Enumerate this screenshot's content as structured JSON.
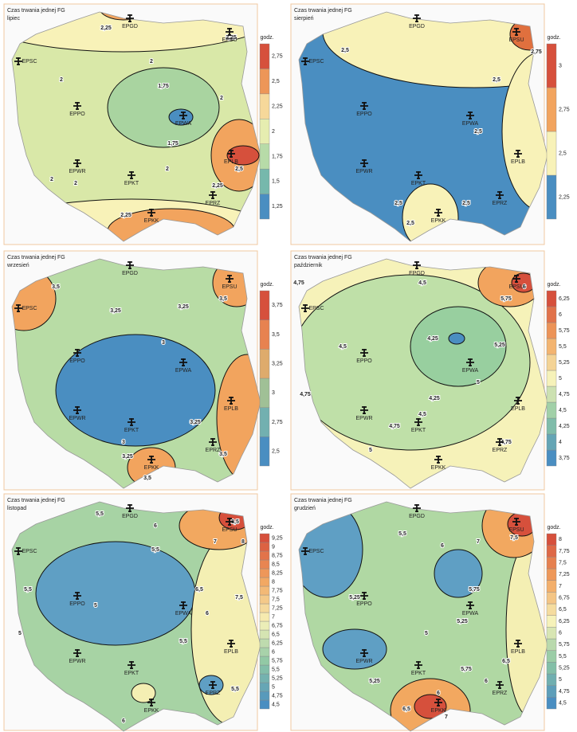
{
  "title": "Czas trwania jednej FG",
  "legend_title": "godz.",
  "airports": [
    "EPGD",
    "EPSU",
    "EPSC",
    "EPPO",
    "EPWA",
    "EPWR",
    "EPKT",
    "EPLB",
    "EPKK",
    "EPRZ"
  ],
  "panels": [
    {
      "month": "lipiec",
      "colormap": [
        "#4a8ec1",
        "#7fc0a8",
        "#d3e8a8",
        "#f8f2b8",
        "#f2a45e",
        "#d6503c"
      ],
      "levels": [
        {
          "value": 1.25,
          "label": "1,25"
        },
        {
          "value": 1.5,
          "label": "1,5"
        },
        {
          "value": 1.75,
          "label": "1,75"
        },
        2,
        {
          "value": 2.25,
          "label": "2,25"
        },
        {
          "value": 2.5,
          "label": "2,5"
        },
        {
          "value": 2.75,
          "label": "2,75"
        }
      ],
      "contour_labels": [
        "2,25",
        "2",
        "2",
        "1,75",
        "1,75",
        "2",
        "2",
        "2",
        "2,5",
        "2,25",
        "2,25",
        "2,25",
        "2"
      ]
    },
    {
      "month": "sierpień",
      "colormap": [
        "#4a8ec1",
        "#f8f2b8",
        "#f2a45e",
        "#d6503c"
      ],
      "levels": [
        {
          "value": 2.25,
          "label": "2,25"
        },
        {
          "value": 2.5,
          "label": "2,5"
        },
        {
          "value": 2.75,
          "label": "2,75"
        },
        3
      ],
      "contour_labels": [
        "2,5",
        "2,5",
        "2,5",
        "2,5",
        "2,5",
        "2,5",
        "2,75"
      ]
    },
    {
      "month": "wrzesień",
      "colormap": [
        "#4a8ec1",
        "#8cc7a4",
        "#f2a45e",
        "#d6503c"
      ],
      "levels": [
        {
          "value": 2.5,
          "label": "2,5"
        },
        {
          "value": 2.75,
          "label": "2,75"
        },
        3,
        {
          "value": 3.25,
          "label": "3,25"
        },
        {
          "value": 3.5,
          "label": "3,5"
        },
        {
          "value": 3.75,
          "label": "3,75"
        }
      ],
      "contour_labels": [
        "3,5",
        "3,25",
        "3,25",
        "3,5",
        "3",
        "3,25",
        "3",
        "3,5",
        "3,25",
        "3,5"
      ]
    },
    {
      "month": "październik",
      "colormap": [
        "#4a8ec1",
        "#8cc7a4",
        "#f6f2b9",
        "#f2a45e",
        "#d6503c"
      ],
      "levels": [
        {
          "value": 3.75,
          "label": "3,75"
        },
        4,
        {
          "value": 4.25,
          "label": "4,25"
        },
        {
          "value": 4.5,
          "label": "4,5"
        },
        {
          "value": 4.75,
          "label": "4,75"
        },
        5,
        {
          "value": 5.25,
          "label": "5,25"
        },
        {
          "value": 5.5,
          "label": "5,5"
        },
        {
          "value": 5.75,
          "label": "5,75"
        },
        6,
        {
          "value": 6.25,
          "label": "6,25"
        }
      ],
      "contour_labels": [
        "4,75",
        "4,5",
        "4,25",
        "4,5",
        "4,75",
        "4,25",
        "4,5",
        "4,75",
        "5",
        "5",
        "5,25",
        "5,75",
        "6",
        "4,75"
      ]
    },
    {
      "month": "listopad",
      "colormap": [
        "#4a8ec1",
        "#8cc7a4",
        "#f6f2b9",
        "#f2a45e",
        "#d6503c"
      ],
      "levels": [
        {
          "value": 4.5,
          "label": "4,5"
        },
        {
          "value": 4.75,
          "label": "4,75"
        },
        5,
        {
          "value": 5.25,
          "label": "5,25"
        },
        {
          "value": 5.5,
          "label": "5,5"
        },
        {
          "value": 5.75,
          "label": "5,75"
        },
        6,
        {
          "value": 6.25,
          "label": "6,25"
        },
        {
          "value": 6.5,
          "label": "6,5"
        },
        {
          "value": 6.75,
          "label": "6,75"
        },
        7,
        {
          "value": 7.25,
          "label": "7,25"
        },
        {
          "value": 7.5,
          "label": "7,5"
        },
        {
          "value": 7.75,
          "label": "7,75"
        },
        8,
        {
          "value": 8.25,
          "label": "8,25"
        },
        {
          "value": 8.5,
          "label": "8,5"
        },
        {
          "value": 8.75,
          "label": "8,75"
        },
        9,
        {
          "value": 9.25,
          "label": "9,25"
        }
      ],
      "contour_labels": [
        "5,5",
        "6",
        "7",
        "8",
        "8,5",
        "5,5",
        "5",
        "5,5",
        "6,5",
        "6",
        "7,5",
        "5,5",
        "5",
        "6",
        "5,5"
      ]
    },
    {
      "month": "grudzień",
      "colormap": [
        "#4a8ec1",
        "#8cc7a4",
        "#f6f2b9",
        "#f2a45e",
        "#d6503c"
      ],
      "levels": [
        {
          "value": 4.5,
          "label": "4,5"
        },
        {
          "value": 4.75,
          "label": "4,75"
        },
        5,
        {
          "value": 5.25,
          "label": "5,25"
        },
        {
          "value": 5.5,
          "label": "5,5"
        },
        {
          "value": 5.75,
          "label": "5,75"
        },
        6,
        {
          "value": 6.25,
          "label": "6,25"
        },
        {
          "value": 6.5,
          "label": "6,5"
        },
        {
          "value": 6.75,
          "label": "6,75"
        },
        7,
        {
          "value": 7.25,
          "label": "7,25"
        },
        {
          "value": 7.5,
          "label": "7,5"
        },
        {
          "value": 7.75,
          "label": "7,75"
        },
        8
      ],
      "contour_labels": [
        "5,5",
        "6",
        "7",
        "7,5",
        "5,25",
        "5",
        "5,25",
        "5,75",
        "6,5",
        "6",
        "5,25",
        "5,75",
        "6",
        "6,5",
        "7"
      ]
    }
  ]
}
